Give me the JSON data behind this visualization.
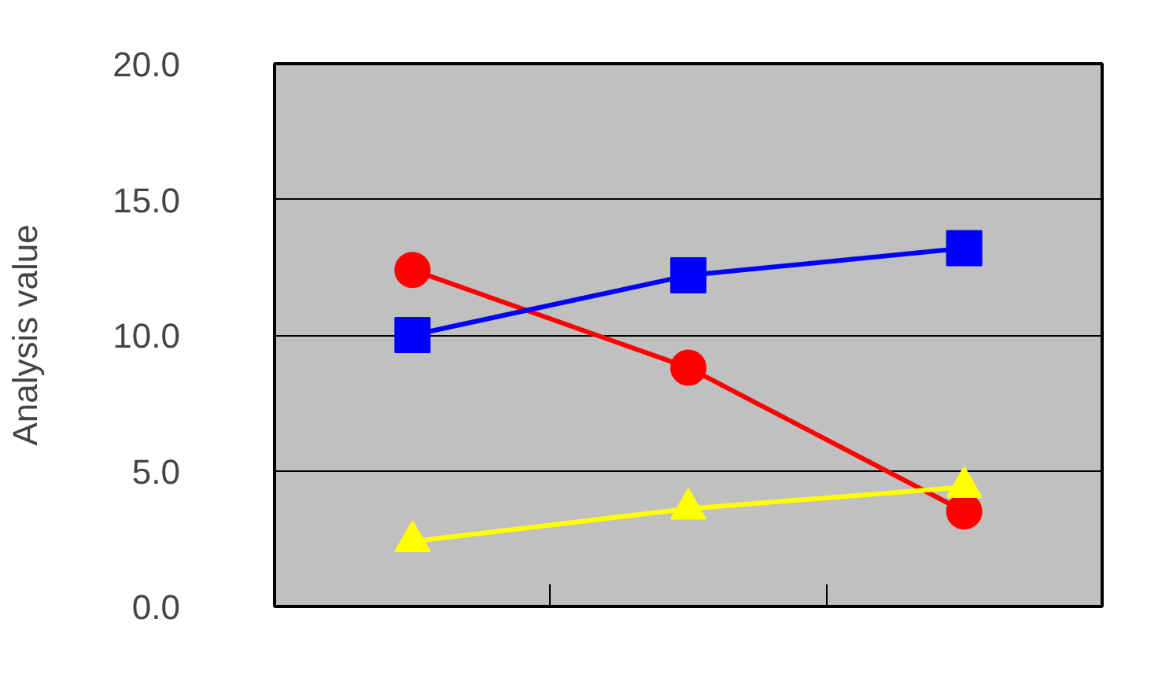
{
  "chart_data": {
    "type": "line",
    "ylabel": "Analysis value",
    "categories": [
      null,
      null,
      null
    ],
    "series": [
      {
        "color": "#ff0000",
        "marker": "circle",
        "values": [
          12.4,
          8.8,
          3.5
        ]
      },
      {
        "color": "#0000ff",
        "marker": "square",
        "values": [
          10.0,
          12.2,
          13.2
        ]
      },
      {
        "color": "#ffff00",
        "marker": "triangle",
        "values": [
          2.4,
          3.6,
          4.4
        ]
      }
    ],
    "ylim": [
      0,
      20
    ],
    "yticks": [
      {
        "value": 0,
        "label": "0.0"
      },
      {
        "value": 5,
        "label": "5.0"
      },
      {
        "value": 10,
        "label": "10.0"
      },
      {
        "value": 15,
        "label": "15.0"
      },
      {
        "value": 20,
        "label": "20.0"
      }
    ],
    "grid": "y",
    "line_style": "solid"
  }
}
